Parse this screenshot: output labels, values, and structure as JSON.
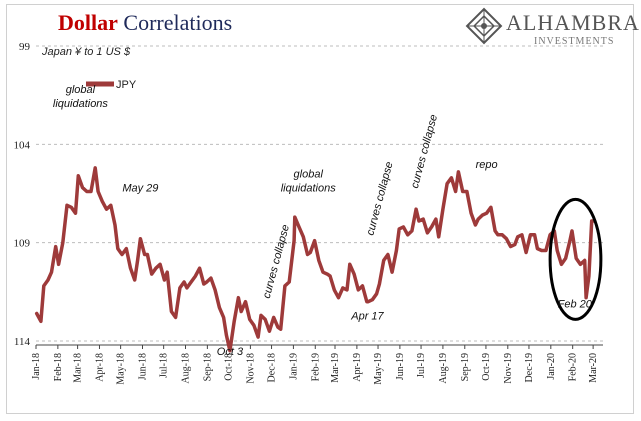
{
  "header": {
    "title_word1": "Dollar",
    "title_word2": "Correlations",
    "logo_name": "ALHAMBRA",
    "logo_sub": "INVESTMENTS"
  },
  "colors": {
    "series": "#9e3a3a",
    "title_red": "#c00000",
    "title_navy": "#1f2a5a",
    "grid": "#bdbdbd"
  },
  "chart_data": {
    "type": "line",
    "title": "Dollar Correlations",
    "ylabel": "Japan ¥ to 1 US $",
    "yaxis_inverted": true,
    "ylim": [
      99,
      114
    ],
    "yticks": [
      99,
      104,
      109,
      114
    ],
    "xlim": [
      "2018-01-01",
      "2020-03-15"
    ],
    "xticks": [
      "Jan-18",
      "Feb-18",
      "Mar-18",
      "Apr-18",
      "May-18",
      "Jun-18",
      "Jul-18",
      "Aug-18",
      "Sep-18",
      "Oct-18",
      "Nov-18",
      "Dec-18",
      "Jan-19",
      "Feb-19",
      "Mar-19",
      "Apr-19",
      "May-19",
      "Jun-19",
      "Jul-19",
      "Aug-19",
      "Sep-19",
      "Oct-19",
      "Nov-19",
      "Dec-19",
      "Jan-20",
      "Feb-20",
      "Mar-20"
    ],
    "grid": "horizontal-dashed",
    "legend_position": "top-left",
    "series": [
      {
        "name": "JPY",
        "color": "#9e3a3a",
        "points": [
          [
            "2018-01-02",
            112.6
          ],
          [
            "2018-01-08",
            113.0
          ],
          [
            "2018-01-12",
            111.2
          ],
          [
            "2018-01-18",
            110.9
          ],
          [
            "2018-01-23",
            110.5
          ],
          [
            "2018-01-29",
            109.2
          ],
          [
            "2018-02-02",
            110.1
          ],
          [
            "2018-02-08",
            109.0
          ],
          [
            "2018-02-14",
            107.1
          ],
          [
            "2018-02-20",
            107.2
          ],
          [
            "2018-02-26",
            107.5
          ],
          [
            "2018-03-02",
            105.6
          ],
          [
            "2018-03-08",
            106.2
          ],
          [
            "2018-03-14",
            106.4
          ],
          [
            "2018-03-20",
            106.4
          ],
          [
            "2018-03-26",
            105.2
          ],
          [
            "2018-03-30",
            106.4
          ],
          [
            "2018-04-05",
            106.9
          ],
          [
            "2018-04-11",
            107.3
          ],
          [
            "2018-04-17",
            107.1
          ],
          [
            "2018-04-23",
            108.1
          ],
          [
            "2018-04-27",
            109.3
          ],
          [
            "2018-05-03",
            109.6
          ],
          [
            "2018-05-09",
            109.3
          ],
          [
            "2018-05-15",
            110.3
          ],
          [
            "2018-05-21",
            110.9
          ],
          [
            "2018-05-25",
            109.9
          ],
          [
            "2018-05-29",
            108.8
          ],
          [
            "2018-06-04",
            109.6
          ],
          [
            "2018-06-08",
            109.6
          ],
          [
            "2018-06-14",
            110.6
          ],
          [
            "2018-06-20",
            110.3
          ],
          [
            "2018-06-26",
            110.1
          ],
          [
            "2018-07-02",
            110.9
          ],
          [
            "2018-07-06",
            110.5
          ],
          [
            "2018-07-12",
            112.5
          ],
          [
            "2018-07-18",
            112.8
          ],
          [
            "2018-07-24",
            111.3
          ],
          [
            "2018-07-30",
            111.0
          ],
          [
            "2018-08-03",
            111.3
          ],
          [
            "2018-08-09",
            111.0
          ],
          [
            "2018-08-15",
            110.7
          ],
          [
            "2018-08-21",
            110.3
          ],
          [
            "2018-08-27",
            111.1
          ],
          [
            "2018-08-31",
            111.0
          ],
          [
            "2018-09-06",
            110.8
          ],
          [
            "2018-09-12",
            111.4
          ],
          [
            "2018-09-18",
            112.3
          ],
          [
            "2018-09-24",
            112.8
          ],
          [
            "2018-09-28",
            113.7
          ],
          [
            "2018-10-03",
            114.5
          ],
          [
            "2018-10-09",
            113.0
          ],
          [
            "2018-10-15",
            111.8
          ],
          [
            "2018-10-19",
            112.5
          ],
          [
            "2018-10-25",
            112.0
          ],
          [
            "2018-10-31",
            112.9
          ],
          [
            "2018-11-06",
            113.2
          ],
          [
            "2018-11-12",
            113.8
          ],
          [
            "2018-11-16",
            112.7
          ],
          [
            "2018-11-22",
            112.9
          ],
          [
            "2018-11-28",
            113.5
          ],
          [
            "2018-12-04",
            112.8
          ],
          [
            "2018-12-10",
            113.3
          ],
          [
            "2018-12-14",
            113.4
          ],
          [
            "2018-12-20",
            111.2
          ],
          [
            "2018-12-26",
            111.0
          ],
          [
            "2019-01-02",
            108.9
          ],
          [
            "2019-01-03",
            107.7
          ],
          [
            "2019-01-09",
            108.2
          ],
          [
            "2019-01-15",
            108.7
          ],
          [
            "2019-01-21",
            109.6
          ],
          [
            "2019-01-25",
            109.5
          ],
          [
            "2019-01-31",
            108.9
          ],
          [
            "2019-02-06",
            109.9
          ],
          [
            "2019-02-12",
            110.5
          ],
          [
            "2019-02-18",
            110.6
          ],
          [
            "2019-02-22",
            110.7
          ],
          [
            "2019-02-28",
            111.4
          ],
          [
            "2019-03-06",
            111.8
          ],
          [
            "2019-03-12",
            111.3
          ],
          [
            "2019-03-18",
            111.4
          ],
          [
            "2019-03-22",
            110.1
          ],
          [
            "2019-03-28",
            110.6
          ],
          [
            "2019-04-03",
            111.4
          ],
          [
            "2019-04-09",
            111.2
          ],
          [
            "2019-04-15",
            112.0
          ],
          [
            "2019-04-17",
            112.0
          ],
          [
            "2019-04-23",
            111.9
          ],
          [
            "2019-04-29",
            111.6
          ],
          [
            "2019-05-03",
            111.1
          ],
          [
            "2019-05-09",
            109.9
          ],
          [
            "2019-05-15",
            109.6
          ],
          [
            "2019-05-21",
            110.5
          ],
          [
            "2019-05-27",
            109.4
          ],
          [
            "2019-05-31",
            108.3
          ],
          [
            "2019-06-06",
            108.2
          ],
          [
            "2019-06-12",
            108.6
          ],
          [
            "2019-06-18",
            108.4
          ],
          [
            "2019-06-24",
            107.3
          ],
          [
            "2019-06-28",
            107.9
          ],
          [
            "2019-07-04",
            107.8
          ],
          [
            "2019-07-10",
            108.5
          ],
          [
            "2019-07-16",
            108.2
          ],
          [
            "2019-07-22",
            107.8
          ],
          [
            "2019-07-26",
            108.7
          ],
          [
            "2019-08-01",
            107.3
          ],
          [
            "2019-08-07",
            106.0
          ],
          [
            "2019-08-13",
            105.7
          ],
          [
            "2019-08-19",
            106.4
          ],
          [
            "2019-08-23",
            105.4
          ],
          [
            "2019-08-29",
            106.4
          ],
          [
            "2019-09-04",
            106.4
          ],
          [
            "2019-09-10",
            107.5
          ],
          [
            "2019-09-16",
            108.1
          ],
          [
            "2019-09-20",
            107.8
          ],
          [
            "2019-09-26",
            107.6
          ],
          [
            "2019-10-02",
            107.5
          ],
          [
            "2019-10-08",
            107.2
          ],
          [
            "2019-10-14",
            108.4
          ],
          [
            "2019-10-18",
            108.6
          ],
          [
            "2019-10-24",
            108.6
          ],
          [
            "2019-10-30",
            108.8
          ],
          [
            "2019-11-05",
            109.2
          ],
          [
            "2019-11-11",
            109.1
          ],
          [
            "2019-11-15",
            108.7
          ],
          [
            "2019-11-21",
            108.6
          ],
          [
            "2019-11-27",
            109.5
          ],
          [
            "2019-12-03",
            108.6
          ],
          [
            "2019-12-09",
            108.6
          ],
          [
            "2019-12-13",
            109.3
          ],
          [
            "2019-12-19",
            109.4
          ],
          [
            "2019-12-25",
            109.4
          ],
          [
            "2019-12-31",
            108.6
          ],
          [
            "2020-01-06",
            108.4
          ],
          [
            "2020-01-10",
            109.4
          ],
          [
            "2020-01-16",
            110.1
          ],
          [
            "2020-01-22",
            109.8
          ],
          [
            "2020-01-28",
            108.9
          ],
          [
            "2020-01-31",
            108.4
          ],
          [
            "2020-02-06",
            109.8
          ],
          [
            "2020-02-12",
            110.1
          ],
          [
            "2020-02-18",
            109.9
          ],
          [
            "2020-02-20",
            111.8
          ],
          [
            "2020-02-24",
            110.7
          ],
          [
            "2020-02-28",
            107.9
          ],
          [
            "2020-03-03",
            107.9
          ]
        ]
      }
    ],
    "annotations": [
      {
        "text": "global liquidations",
        "date": "2018-03-05",
        "value": 101.7
      },
      {
        "text": "May 29",
        "date": "2018-05-29",
        "value": 106.4
      },
      {
        "text": "Oct 3",
        "date": "2018-10-03",
        "value": 114.7
      },
      {
        "text": "curves collapse",
        "date": "2018-12-12",
        "value": 110.0,
        "rotated": true
      },
      {
        "text": "global liquidations",
        "date": "2019-01-22",
        "value": 106.0
      },
      {
        "text": "Apr 17",
        "date": "2019-04-16",
        "value": 112.9
      },
      {
        "text": "curves collapse",
        "date": "2019-05-08",
        "value": 106.8,
        "rotated": true
      },
      {
        "text": "curves collapse",
        "date": "2019-07-10",
        "value": 104.4,
        "rotated": true
      },
      {
        "text": "repo",
        "date": "2019-10-02",
        "value": 105.2
      },
      {
        "text": "Feb 20",
        "date": "2020-02-04",
        "value": 112.3
      }
    ],
    "highlight_ellipse": {
      "date_from": "2019-12-31",
      "date_to": "2020-03-12",
      "value_from": 112.9,
      "value_to": 106.8
    }
  }
}
